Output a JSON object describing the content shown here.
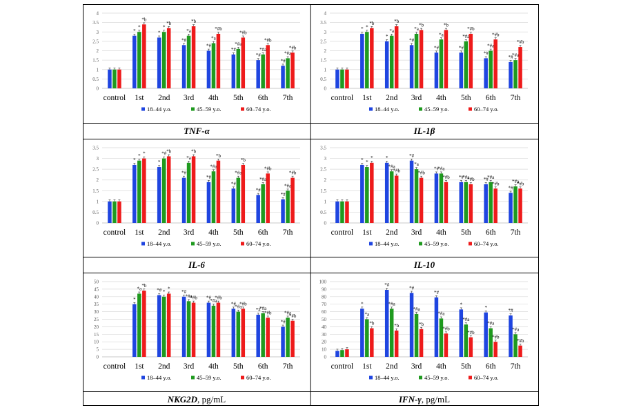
{
  "legend_labels": [
    "18–44 y.o.",
    "45–59 y.o.",
    "60–74 y.o."
  ],
  "colors": [
    "#1f45e0",
    "#1f9a1f",
    "#ee1b1b"
  ],
  "chart_data": [
    {
      "type": "bar",
      "title": "TNF-α",
      "title_suffix": "",
      "categories": [
        "control",
        "1st",
        "2nd",
        "3rd",
        "4th",
        "5th",
        "6th",
        "7th"
      ],
      "ylim": [
        0,
        4
      ],
      "yticks": [
        "0",
        "0.5",
        "1",
        "1.5",
        "2",
        "2.5",
        "3",
        "3.5",
        "4"
      ],
      "series": [
        {
          "name": "18–44 y.o.",
          "values": [
            1.0,
            2.8,
            2.7,
            2.3,
            2.0,
            1.8,
            1.5,
            1.2
          ]
        },
        {
          "name": "45–59 y.o.",
          "values": [
            1.0,
            3.0,
            3.0,
            2.8,
            2.4,
            2.1,
            1.8,
            1.6
          ]
        },
        {
          "name": "60–74 y.o.",
          "values": [
            1.0,
            3.4,
            3.2,
            3.3,
            2.9,
            2.7,
            2.3,
            1.9
          ]
        }
      ],
      "annotations": [
        [
          "",
          "",
          ""
        ],
        [
          "*",
          "*",
          "*b"
        ],
        [
          "*",
          "*",
          "*b"
        ],
        [
          "*#",
          "*a",
          "*b"
        ],
        [
          "*#",
          "*a",
          "*#b"
        ],
        [
          "*#",
          "*#a",
          "*#b"
        ],
        [
          "*#",
          "*#a",
          "*#b"
        ],
        [
          "*#",
          "*#a",
          "*#b"
        ]
      ]
    },
    {
      "type": "bar",
      "title": "IL-1β",
      "title_suffix": "",
      "categories": [
        "control",
        "1st",
        "2nd",
        "3rd",
        "4th",
        "5th",
        "6th",
        "7th"
      ],
      "ylim": [
        0,
        4
      ],
      "yticks": [
        "0",
        "0.5",
        "1",
        "1.5",
        "2",
        "2.5",
        "3",
        "3.5",
        "4"
      ],
      "series": [
        {
          "name": "18–44 y.o.",
          "values": [
            1.0,
            2.9,
            2.5,
            2.3,
            1.9,
            1.9,
            1.6,
            1.4
          ]
        },
        {
          "name": "45–59 y.o.",
          "values": [
            1.0,
            3.0,
            2.8,
            2.9,
            2.6,
            2.5,
            2.0,
            1.5
          ]
        },
        {
          "name": "60–74 y.o.",
          "values": [
            1.0,
            3.2,
            3.3,
            3.1,
            3.1,
            2.9,
            2.6,
            2.2
          ]
        }
      ],
      "annotations": [
        [
          "",
          "",
          ""
        ],
        [
          "*",
          "*",
          "*b"
        ],
        [
          "*",
          "*a",
          "*b"
        ],
        [
          "*#",
          "*a",
          "*b"
        ],
        [
          "*#",
          "*a",
          "*b"
        ],
        [
          "*#",
          "*#a",
          "*#b"
        ],
        [
          "*#",
          "*#a",
          "*#b"
        ],
        [
          "*#",
          "*#a",
          "*#b"
        ]
      ]
    },
    {
      "type": "bar",
      "title": "IL-6",
      "title_suffix": "",
      "categories": [
        "control",
        "1st",
        "2nd",
        "3rd",
        "4th",
        "5th",
        "6th",
        "7th"
      ],
      "ylim": [
        0,
        3.5
      ],
      "yticks": [
        "0",
        "0.5",
        "1",
        "1.5",
        "2",
        "2.5",
        "3",
        "3.5"
      ],
      "series": [
        {
          "name": "18–44 y.o.",
          "values": [
            1.0,
            2.7,
            2.6,
            2.1,
            1.9,
            1.6,
            1.3,
            1.1
          ]
        },
        {
          "name": "45–59 y.o.",
          "values": [
            1.0,
            2.9,
            3.0,
            2.8,
            2.4,
            2.1,
            1.8,
            1.5
          ]
        },
        {
          "name": "60–74 y.o.",
          "values": [
            1.0,
            3.0,
            3.1,
            3.1,
            2.9,
            2.7,
            2.3,
            2.1
          ]
        }
      ],
      "annotations": [
        [
          "",
          "",
          ""
        ],
        [
          "*",
          "*",
          "*"
        ],
        [
          "*",
          "*#",
          "*b"
        ],
        [
          "*#",
          "*a",
          "*b"
        ],
        [
          "*#",
          "*#a",
          "*b"
        ],
        [
          "*#",
          "*#a",
          "*b"
        ],
        [
          "*#",
          "*#a",
          "*#b"
        ],
        [
          "*#",
          "*#a",
          "*#b"
        ]
      ]
    },
    {
      "type": "bar",
      "title": "IL-10",
      "title_suffix": "",
      "categories": [
        "control",
        "1st",
        "2nd",
        "3rd",
        "4th",
        "5th",
        "6th",
        "7th"
      ],
      "ylim": [
        0,
        3.5
      ],
      "yticks": [
        "0",
        "0.5",
        "1",
        "1.5",
        "2",
        "2.5",
        "3",
        "3.5"
      ],
      "series": [
        {
          "name": "18–44 y.o.",
          "values": [
            1.0,
            2.7,
            2.8,
            2.9,
            2.3,
            1.9,
            1.8,
            1.4
          ]
        },
        {
          "name": "45–59 y.o.",
          "values": [
            1.0,
            2.6,
            2.4,
            2.5,
            2.3,
            1.9,
            1.9,
            1.7
          ]
        },
        {
          "name": "60–74 y.o.",
          "values": [
            1.0,
            2.8,
            2.2,
            2.1,
            1.9,
            1.8,
            1.6,
            1.6
          ]
        }
      ],
      "annotations": [
        [
          "",
          "",
          ""
        ],
        [
          "*",
          "*",
          "*"
        ],
        [
          "*",
          "*#a",
          "*#b"
        ],
        [
          "*#",
          "*a",
          "*#b"
        ],
        [
          "*#",
          "*#a",
          "*#b"
        ],
        [
          "*#",
          "*#a",
          "*#b"
        ],
        [
          "*#",
          "*#a",
          "*#b"
        ],
        [
          "*#",
          "*#a",
          "*#b"
        ]
      ]
    },
    {
      "type": "bar",
      "title": "NKG2D",
      "title_suffix": ", pg/mL",
      "categories": [
        "control",
        "1st",
        "2nd",
        "3rd",
        "4th",
        "5th",
        "6th",
        "7th"
      ],
      "ylim": [
        0,
        50
      ],
      "yticks": [
        "0",
        "5",
        "10",
        "15",
        "20",
        "25",
        "30",
        "35",
        "40",
        "45",
        "50"
      ],
      "series": [
        {
          "name": "18–44 y.o.",
          "values": [
            0,
            35,
            41,
            40,
            36,
            32,
            28,
            20
          ]
        },
        {
          "name": "45–59 y.o.",
          "values": [
            0,
            42,
            40,
            37,
            34,
            30,
            29,
            26
          ]
        },
        {
          "name": "60–74 y.o.",
          "values": [
            0,
            44,
            42,
            36,
            36,
            32,
            26,
            24
          ]
        }
      ],
      "annotations": [
        [
          "",
          "",
          ""
        ],
        [
          "*",
          "*a",
          "*b"
        ],
        [
          "*#",
          "*",
          "*"
        ],
        [
          "*#",
          "*#a",
          "*#b"
        ],
        [
          "*#",
          "*#a",
          "*#b"
        ],
        [
          "*#",
          "*#a",
          "*#b"
        ],
        [
          "*#",
          "*#a",
          "*#b"
        ],
        [
          "*#",
          "*#a",
          "*#b"
        ]
      ]
    },
    {
      "type": "bar",
      "title": "IFN-γ",
      "title_suffix": ", pg/mL",
      "categories": [
        "control",
        "1st",
        "2nd",
        "3rd",
        "4th",
        "5th",
        "6th",
        "7th"
      ],
      "ylim": [
        0,
        100
      ],
      "yticks": [
        "0",
        "10",
        "20",
        "30",
        "40",
        "50",
        "60",
        "70",
        "80",
        "90",
        "100"
      ],
      "series": [
        {
          "name": "18–44 y.o.",
          "values": [
            8,
            64,
            89,
            85,
            79,
            63,
            59,
            55
          ]
        },
        {
          "name": "45–59 y.o.",
          "values": [
            9,
            50,
            64,
            57,
            51,
            43,
            38,
            30
          ]
        },
        {
          "name": "60–74 y.o.",
          "values": [
            10,
            38,
            35,
            37,
            31,
            26,
            20,
            15
          ]
        }
      ],
      "annotations": [
        [
          "",
          "",
          ""
        ],
        [
          "*",
          "*a",
          "*b"
        ],
        [
          "*#",
          "*#a",
          "*b"
        ],
        [
          "*#",
          "*#a",
          "*b"
        ],
        [
          "*#",
          "*#a",
          "*#b"
        ],
        [
          "*",
          "*#a",
          "*#b"
        ],
        [
          "*",
          "*#a",
          "*#b"
        ],
        [
          "*#",
          "*#a",
          "*#b"
        ]
      ]
    }
  ]
}
